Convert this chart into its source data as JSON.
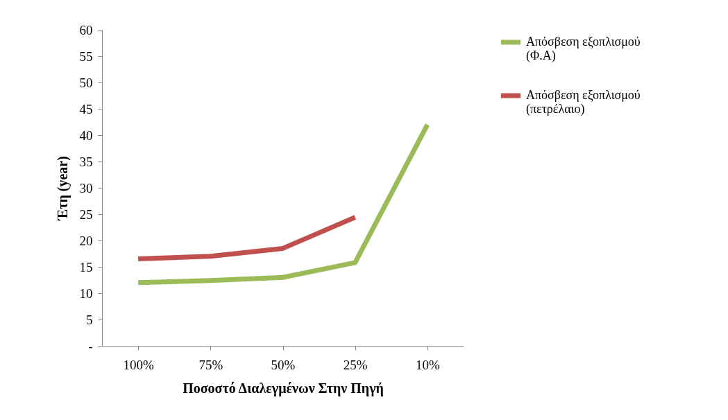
{
  "chart_data": {
    "type": "line",
    "xlabel": "Ποσοστό Διαλεγμένων Στην Πηγή",
    "ylabel": "Έτη (year)",
    "categories": [
      "100%",
      "75%",
      "50%",
      "25%",
      "10%"
    ],
    "series": [
      {
        "name": "Απόσβεση εξοπλισμού (Φ.Α)",
        "color": "#9bbb59",
        "values": [
          12,
          12.4,
          13,
          15.8,
          42
        ]
      },
      {
        "name": "Απόσβεση εξοπλισμού (πετρέλαιο)",
        "color": "#c0504d",
        "values": [
          16.5,
          17,
          18.5,
          24.4,
          null
        ]
      }
    ],
    "ylim": [
      0,
      60
    ],
    "yticks": [
      {
        "value": 0,
        "label": "-"
      },
      5,
      10,
      15,
      20,
      25,
      30,
      35,
      40,
      45,
      50,
      55,
      60
    ],
    "grid": false,
    "legend": "right",
    "marker": "none",
    "line_style": "solid"
  }
}
